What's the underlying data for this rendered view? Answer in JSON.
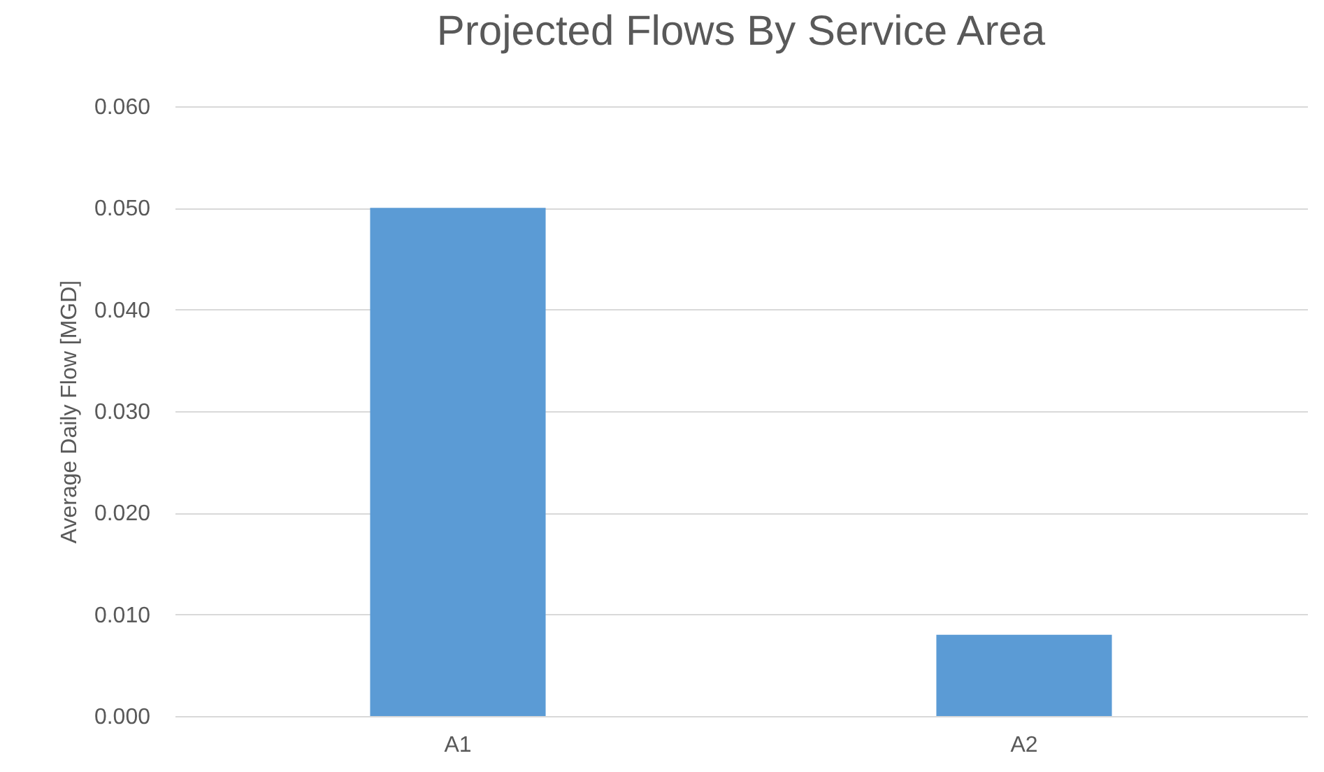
{
  "chart_data": {
    "type": "bar",
    "title": "Projected Flows By Service Area",
    "ylabel": "Average Daily Flow [MGD]",
    "categories": [
      "A1",
      "A2"
    ],
    "values": [
      0.05,
      0.008
    ],
    "color": "#5b9bd5",
    "ylim": [
      0,
      0.06
    ],
    "yticks": [
      {
        "value": 0,
        "label": "0.000"
      },
      {
        "value": 0.01,
        "label": "0.010"
      },
      {
        "value": 0.02,
        "label": "0.020"
      },
      {
        "value": 0.03,
        "label": "0.030"
      },
      {
        "value": 0.04,
        "label": "0.040"
      },
      {
        "value": 0.05,
        "label": "0.050"
      },
      {
        "value": 0.06,
        "label": "0.060"
      }
    ],
    "grid": "y"
  }
}
